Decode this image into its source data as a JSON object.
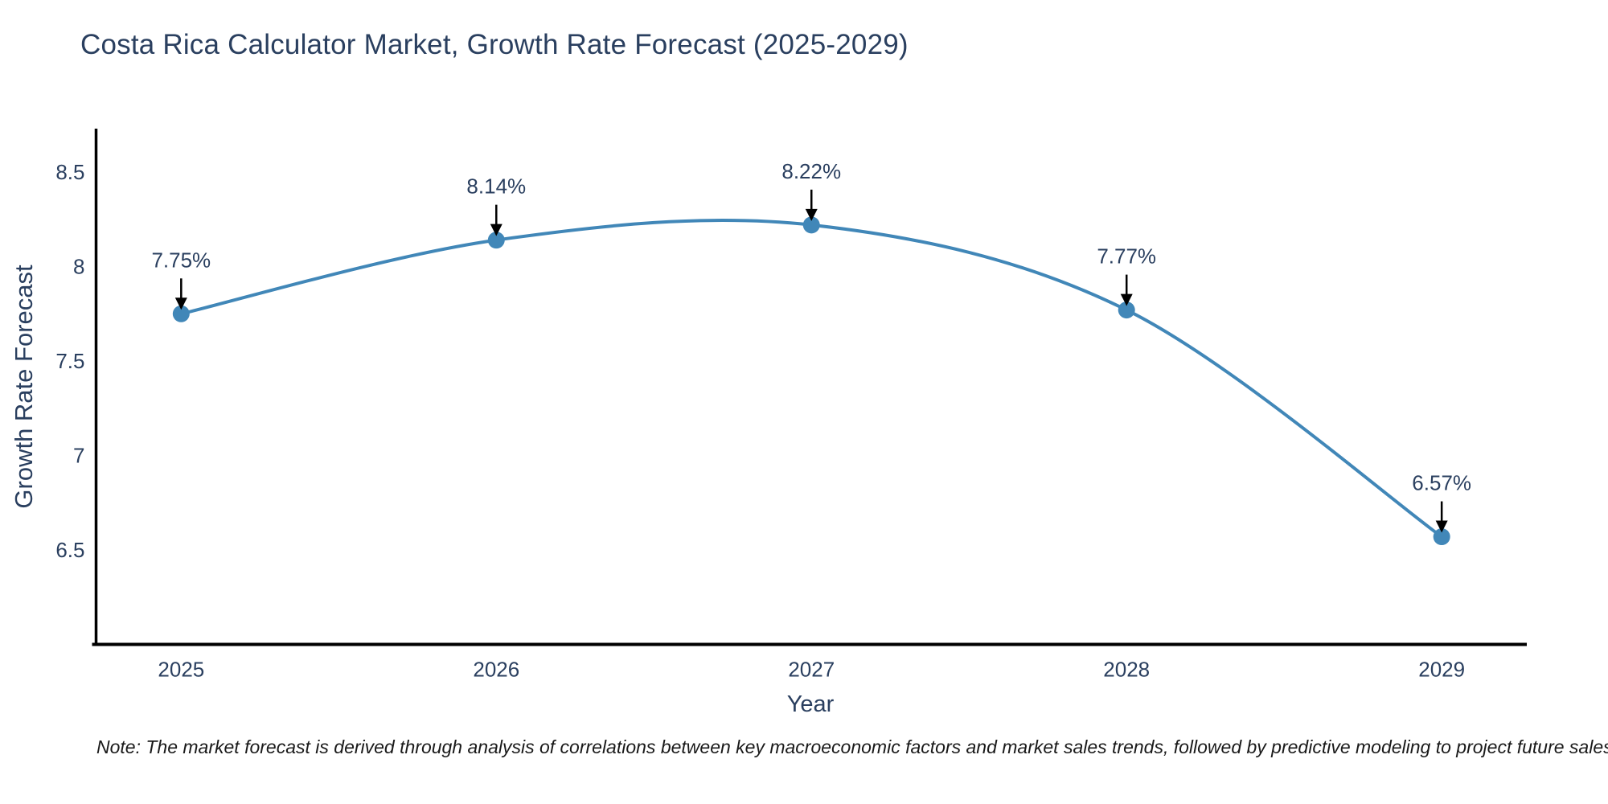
{
  "title": "Costa Rica Calculator Market, Growth Rate Forecast (2025-2029)",
  "note": "Note: The market forecast is derived through analysis of correlations between key macroeconomic factors and market sales trends, followed by predictive modeling to project future sales",
  "chart_data": {
    "type": "line",
    "line_shape": "spline",
    "title": "Costa Rica Calculator Market, Growth Rate Forecast (2025-2029)",
    "xlabel": "Year",
    "ylabel": "Growth Rate Forecast",
    "x": [
      2025,
      2026,
      2027,
      2028,
      2029
    ],
    "x_tick_labels": [
      "2025",
      "2026",
      "2027",
      "2028",
      "2029"
    ],
    "values": [
      7.75,
      8.14,
      8.22,
      7.77,
      6.57
    ],
    "point_labels": [
      "7.75%",
      "8.14%",
      "8.22%",
      "7.77%",
      "6.57%"
    ],
    "yticks": [
      8.5,
      8,
      7.5,
      7,
      6.5
    ],
    "ytick_labels": [
      "8.5",
      "8",
      "7.5",
      "7",
      "6.5"
    ],
    "xlim": [
      2024.73,
      2029.27
    ],
    "ylim": [
      6.0,
      8.73
    ],
    "grid": false,
    "legend_position": "none",
    "colors": {
      "line": "#4187b8",
      "marker": "#4187b8",
      "axis": "#000000",
      "tick_text": "#2a3f5f",
      "annotation_text": "#2a3f5f",
      "annotation_arrow": "#000000",
      "background": "#ffffff"
    }
  }
}
